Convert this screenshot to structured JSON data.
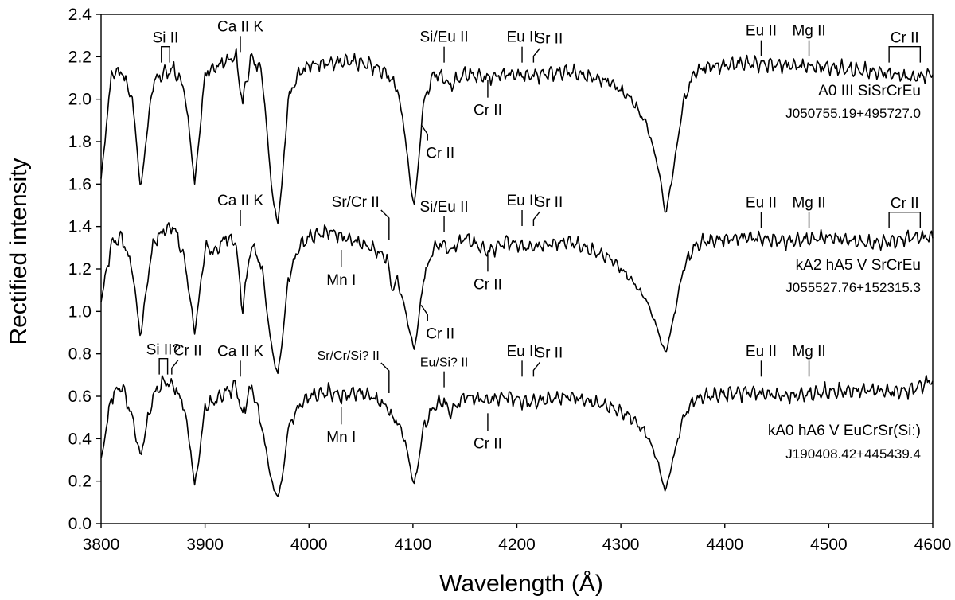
{
  "chart_data": {
    "type": "line",
    "xlabel": "Wavelength (Å)",
    "ylabel": "Rectified intensity",
    "xlim": [
      3800,
      4600
    ],
    "ylim": [
      0.0,
      2.4
    ],
    "xticks": [
      3800,
      3900,
      4000,
      4100,
      4200,
      4300,
      4400,
      4500,
      4600
    ],
    "yticks": [
      "0.0",
      "0.2",
      "0.4",
      "0.6",
      "0.8",
      "1.0",
      "1.2",
      "1.4",
      "1.6",
      "1.8",
      "2.0",
      "2.2",
      "2.4"
    ],
    "grid": false,
    "series": [
      {
        "name": "A0 III SiSrCrEu",
        "id": "J050755.19+495727.0",
        "continuum": 2.15,
        "x": [
          3800,
          3810,
          3820,
          3830,
          3835,
          3838,
          3842,
          3850,
          3860,
          3870,
          3880,
          3886,
          3890,
          3894,
          3900,
          3910,
          3920,
          3930,
          3934,
          3936,
          3938,
          3945,
          3955,
          3962,
          3966,
          3970,
          3974,
          3980,
          3990,
          4000,
          4020,
          4040,
          4060,
          4075,
          4085,
          4092,
          4098,
          4101,
          4104,
          4110,
          4120,
          4130,
          4135,
          4150,
          4172,
          4190,
          4210,
          4250,
          4290,
          4310,
          4325,
          4335,
          4340,
          4343,
          4350,
          4360,
          4370,
          4380,
          4420,
          4460,
          4500,
          4540,
          4560,
          4580,
          4600
        ],
        "y": [
          1.62,
          2.12,
          2.13,
          2.0,
          1.75,
          1.56,
          1.75,
          2.08,
          2.12,
          2.14,
          2.05,
          1.8,
          1.6,
          1.8,
          2.12,
          2.15,
          2.18,
          2.2,
          2.05,
          1.97,
          2.05,
          2.2,
          2.12,
          1.7,
          1.5,
          1.42,
          1.6,
          2.0,
          2.12,
          2.16,
          2.17,
          2.18,
          2.16,
          2.12,
          2.05,
          1.85,
          1.58,
          1.5,
          1.62,
          1.98,
          2.12,
          2.1,
          2.06,
          2.12,
          2.1,
          2.12,
          2.11,
          2.13,
          2.08,
          2.0,
          1.88,
          1.7,
          1.56,
          1.45,
          1.65,
          1.98,
          2.12,
          2.15,
          2.17,
          2.16,
          2.15,
          2.13,
          2.12,
          2.1,
          2.12
        ]
      },
      {
        "name": "kA2 hA5 V SrCrEu",
        "id": "J055527.76+152315.3",
        "continuum": 1.37,
        "x": [
          3800,
          3810,
          3820,
          3830,
          3835,
          3838,
          3842,
          3850,
          3860,
          3870,
          3880,
          3886,
          3890,
          3894,
          3900,
          3910,
          3920,
          3930,
          3934,
          3936,
          3938,
          3945,
          3955,
          3962,
          3966,
          3970,
          3974,
          3980,
          3990,
          4000,
          4020,
          4032,
          4045,
          4060,
          4075,
          4080,
          4085,
          4092,
          4098,
          4101,
          4104,
          4110,
          4120,
          4130,
          4135,
          4150,
          4172,
          4190,
          4210,
          4250,
          4290,
          4310,
          4325,
          4335,
          4340,
          4343,
          4350,
          4360,
          4370,
          4380,
          4420,
          4460,
          4500,
          4540,
          4560,
          4580,
          4600
        ],
        "y": [
          1.05,
          1.32,
          1.35,
          1.2,
          1.0,
          0.87,
          1.05,
          1.32,
          1.38,
          1.4,
          1.25,
          1.05,
          0.9,
          1.05,
          1.3,
          1.28,
          1.35,
          1.32,
          1.1,
          0.98,
          1.1,
          1.32,
          1.2,
          0.9,
          0.78,
          0.7,
          0.85,
          1.15,
          1.3,
          1.35,
          1.38,
          1.35,
          1.33,
          1.3,
          1.25,
          1.1,
          1.15,
          1.02,
          0.88,
          0.82,
          0.9,
          1.15,
          1.3,
          1.32,
          1.28,
          1.35,
          1.28,
          1.33,
          1.3,
          1.33,
          1.25,
          1.15,
          1.05,
          0.92,
          0.84,
          0.8,
          0.95,
          1.2,
          1.3,
          1.33,
          1.35,
          1.33,
          1.35,
          1.32,
          1.33,
          1.35,
          1.35
        ]
      },
      {
        "name": "kA0 hA6 V EuCrSr(Si:)",
        "id": "J190408.42+445439.4",
        "continuum": 0.62,
        "x": [
          3800,
          3810,
          3820,
          3830,
          3835,
          3838,
          3842,
          3850,
          3860,
          3870,
          3880,
          3886,
          3890,
          3894,
          3900,
          3910,
          3920,
          3930,
          3934,
          3936,
          3938,
          3945,
          3955,
          3962,
          3966,
          3970,
          3974,
          3980,
          3990,
          4000,
          4020,
          4032,
          4045,
          4060,
          4075,
          4080,
          4085,
          4092,
          4098,
          4101,
          4104,
          4110,
          4120,
          4130,
          4135,
          4150,
          4172,
          4190,
          4210,
          4250,
          4290,
          4310,
          4325,
          4335,
          4340,
          4343,
          4350,
          4360,
          4370,
          4380,
          4420,
          4460,
          4500,
          4540,
          4560,
          4580,
          4600
        ],
        "y": [
          0.3,
          0.6,
          0.65,
          0.5,
          0.38,
          0.31,
          0.42,
          0.6,
          0.67,
          0.65,
          0.55,
          0.35,
          0.18,
          0.3,
          0.55,
          0.58,
          0.62,
          0.65,
          0.55,
          0.5,
          0.55,
          0.65,
          0.45,
          0.25,
          0.16,
          0.13,
          0.2,
          0.45,
          0.55,
          0.6,
          0.62,
          0.6,
          0.62,
          0.6,
          0.55,
          0.5,
          0.48,
          0.4,
          0.25,
          0.18,
          0.25,
          0.45,
          0.55,
          0.58,
          0.52,
          0.6,
          0.58,
          0.6,
          0.57,
          0.6,
          0.55,
          0.5,
          0.42,
          0.3,
          0.2,
          0.15,
          0.3,
          0.5,
          0.58,
          0.6,
          0.62,
          0.6,
          0.62,
          0.63,
          0.62,
          0.63,
          0.68
        ]
      }
    ],
    "annotations": [
      {
        "label": "Si II",
        "x": [
          3858,
          3866
        ],
        "y": 2.15,
        "type": "bracket-up"
      },
      {
        "label": "Ca II K",
        "x": 3934,
        "y": 2.2,
        "type": "tick-up"
      },
      {
        "label": "Si/Eu II",
        "x": 4130,
        "y": 2.15,
        "type": "tick-up"
      },
      {
        "label": "Eu II",
        "x": 4205,
        "y": 2.15,
        "type": "tick-up"
      },
      {
        "label": "Sr II",
        "x": 4216,
        "y": 2.15,
        "type": "tick-up-angled"
      },
      {
        "label": "Cr II",
        "x": 4172,
        "y": 2.12,
        "type": "tick-down"
      },
      {
        "label": "Cr II",
        "x": 4111,
        "y": 1.88,
        "type": "tick-down-angled"
      },
      {
        "label": "Eu II",
        "x": 4435,
        "y": 2.18,
        "type": "tick-up"
      },
      {
        "label": "Mg II",
        "x": 4481,
        "y": 2.18,
        "type": "tick-up"
      },
      {
        "label": "Cr II",
        "x": [
          4558,
          4588
        ],
        "y": 2.15,
        "type": "bracket-up"
      },
      {
        "label": "Ca II K",
        "x": 3934,
        "y": 1.38,
        "type": "tick-up"
      },
      {
        "label": "Sr/Cr II",
        "x": 4077,
        "y": 1.32,
        "type": "tick-up-angled-left"
      },
      {
        "label": "Si/Eu II",
        "x": 4130,
        "y": 1.35,
        "type": "tick-up"
      },
      {
        "label": "Eu II",
        "x": 4205,
        "y": 1.38,
        "type": "tick-up"
      },
      {
        "label": "Sr II",
        "x": 4216,
        "y": 1.38,
        "type": "tick-up-angled"
      },
      {
        "label": "Mn I",
        "x": 4031,
        "y": 1.32,
        "type": "tick-down"
      },
      {
        "label": "Cr II",
        "x": 4172,
        "y": 1.3,
        "type": "tick-down"
      },
      {
        "label": "Cr II",
        "x": 4111,
        "y": 1.03,
        "type": "tick-down-angled"
      },
      {
        "label": "Eu II",
        "x": 4435,
        "y": 1.37,
        "type": "tick-up"
      },
      {
        "label": "Mg II",
        "x": 4481,
        "y": 1.37,
        "type": "tick-up"
      },
      {
        "label": "Cr II",
        "x": [
          4558,
          4588
        ],
        "y": 1.37,
        "type": "bracket-up"
      },
      {
        "label": "Si II?",
        "x": [
          3856,
          3864
        ],
        "y": 0.68,
        "type": "bracket-up"
      },
      {
        "label": "Cr II",
        "x": 3868,
        "y": 0.68,
        "type": "tick-up-angled"
      },
      {
        "label": "Ca II K",
        "x": 3934,
        "y": 0.67,
        "type": "tick-up"
      },
      {
        "label": "Sr/Cr/Si? II",
        "x": 4077,
        "y": 0.6,
        "type": "tick-up-angled-left"
      },
      {
        "label": "Eu/Si? II",
        "x": 4130,
        "y": 0.62,
        "type": "tick-up"
      },
      {
        "label": "Eu II",
        "x": 4205,
        "y": 0.67,
        "type": "tick-up"
      },
      {
        "label": "Sr II",
        "x": 4216,
        "y": 0.67,
        "type": "tick-up-angled"
      },
      {
        "label": "Mn I",
        "x": 4031,
        "y": 0.58,
        "type": "tick-down"
      },
      {
        "label": "Cr II",
        "x": 4172,
        "y": 0.55,
        "type": "tick-down"
      },
      {
        "label": "Eu II",
        "x": 4435,
        "y": 0.67,
        "type": "tick-up"
      },
      {
        "label": "Mg II",
        "x": 4481,
        "y": 0.67,
        "type": "tick-up"
      }
    ]
  }
}
